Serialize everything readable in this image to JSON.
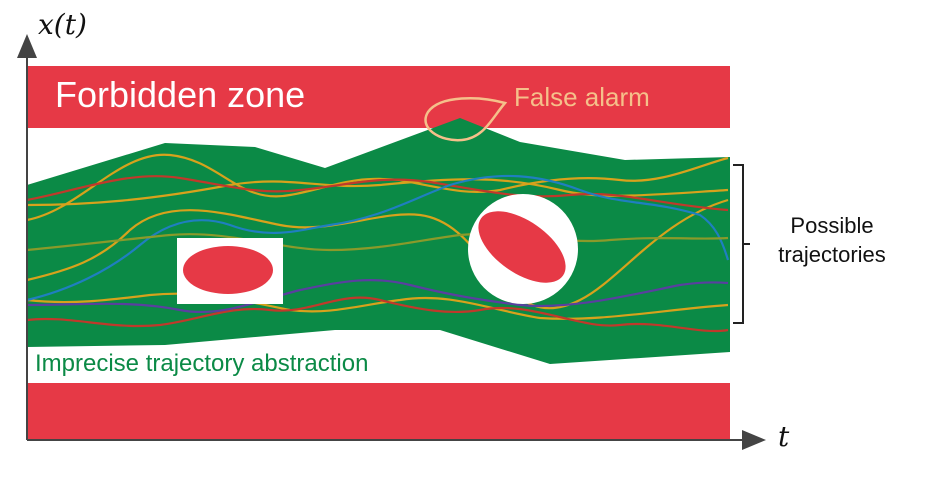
{
  "axes": {
    "y_label": "x(t)",
    "x_label": "t"
  },
  "labels": {
    "forbidden_zone": "Forbidden zone",
    "false_alarm": "False alarm",
    "possible_trajectories_line1": "Possible",
    "possible_trajectories_line2": "trajectories",
    "imprecise_abstraction": "Imprecise trajectory abstraction"
  },
  "colors": {
    "forbidden": "#e63946",
    "abstraction": "#0b8a46",
    "false_alarm": "#f5c08a",
    "axis": "#444444",
    "trajectory_gold": "#d7a21c",
    "trajectory_blue": "#1f7fc0",
    "trajectory_red": "#c0392b",
    "trajectory_purple": "#5a3fa0",
    "trajectory_olive": "#8a9a2a"
  }
}
